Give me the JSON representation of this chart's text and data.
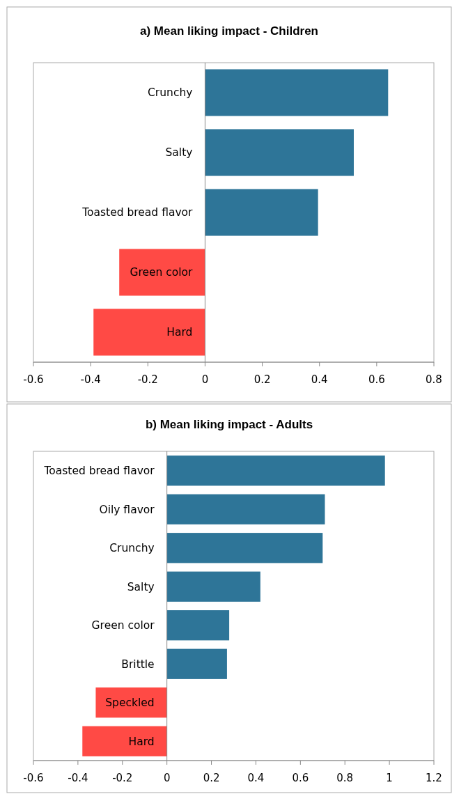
{
  "chart_data": [
    {
      "type": "bar",
      "orientation": "horizontal",
      "title": "a) Mean liking impact - Children",
      "categories": [
        "Crunchy",
        "Salty",
        "Toasted bread flavor",
        "Green color",
        "Hard"
      ],
      "values": [
        0.64,
        0.52,
        0.395,
        -0.3,
        -0.39
      ],
      "colors": [
        "#2e7598",
        "#2e7598",
        "#2e7598",
        "#ff4a45",
        "#ff4a45"
      ],
      "xlim": [
        -0.6,
        0.8
      ],
      "xticks": [
        -0.6,
        -0.4,
        -0.2,
        0,
        0.2,
        0.4,
        0.6,
        0.8
      ]
    },
    {
      "type": "bar",
      "orientation": "horizontal",
      "title": "b) Mean liking impact - Adults",
      "categories": [
        "Toasted bread flavor",
        "Oily flavor",
        "Crunchy",
        "Salty",
        "Green color",
        "Brittle",
        "Speckled",
        "Hard"
      ],
      "values": [
        0.98,
        0.71,
        0.7,
        0.42,
        0.28,
        0.27,
        -0.32,
        -0.38
      ],
      "colors": [
        "#2e7598",
        "#2e7598",
        "#2e7598",
        "#2e7598",
        "#2e7598",
        "#2e7598",
        "#ff4a45",
        "#ff4a45"
      ],
      "xlim": [
        -0.6,
        1.2
      ],
      "xticks": [
        -0.6,
        -0.4,
        -0.2,
        0,
        0.2,
        0.4,
        0.6,
        0.8,
        1,
        1.2
      ]
    }
  ]
}
